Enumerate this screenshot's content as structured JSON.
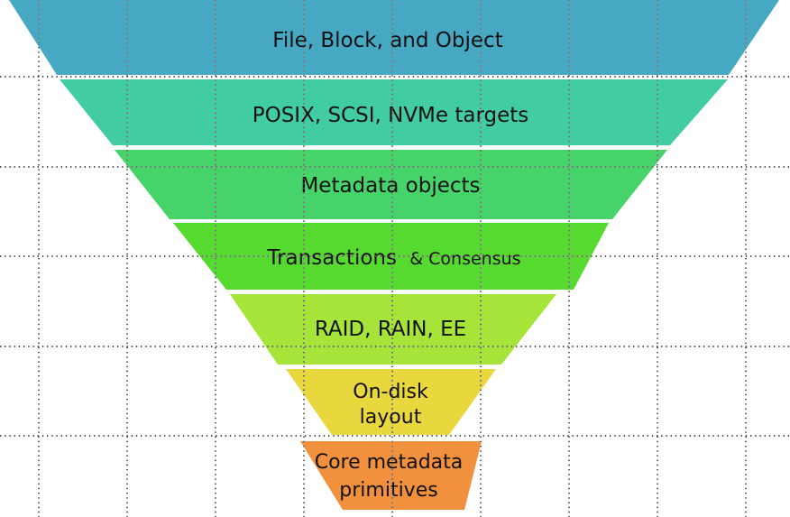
{
  "diagram": {
    "background_color": "#ffffff",
    "grid_dot_color": "#1a1a1a",
    "text_color": "#111111",
    "layers": [
      {
        "label": "File, Block, and Object",
        "color": "#47a8c4"
      },
      {
        "label": "POSIX, SCSI, NVMe targets",
        "color": "#41cda1"
      },
      {
        "label": "Metadata objects",
        "color": "#46d36a"
      },
      {
        "label": "Transactions",
        "label_suffix": "& Consensus",
        "color": "#56da30"
      },
      {
        "label": "RAID, RAIN, EE",
        "color": "#a6e43a"
      },
      {
        "label": "On-disk",
        "label_line2": "layout",
        "color": "#e8d83d"
      },
      {
        "label": "Core metadata",
        "label_line2": "primitives",
        "color": "#f2913d"
      }
    ]
  }
}
